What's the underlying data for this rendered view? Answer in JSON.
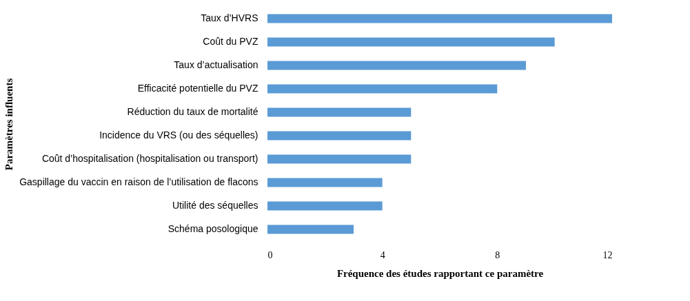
{
  "chart_data": {
    "type": "bar",
    "orientation": "horizontal",
    "categories": [
      "Taux d’HVRS",
      "Coût du PVZ",
      "Taux d’actualisation",
      "Efficacité potentielle du PVZ",
      "Réduction du taux de mortalité",
      "Incidence du VRS (ou des séquelles)",
      "Coût d’hospitalisation (hospitalisation ou transport)",
      "Gaspillage du vaccin en raison de l’utilisation de flacons",
      "Utilité des séquelles",
      "Schéma posologique"
    ],
    "values": [
      12,
      10,
      9,
      8,
      5,
      5,
      5,
      4,
      4,
      3
    ],
    "color": "#5b9bd5",
    "xlim": [
      0,
      12
    ],
    "xticks": [
      0,
      4,
      8,
      12
    ],
    "xlabel": "Fréquence des études rapportant ce paramètre",
    "ylabel": "Paramètres influents",
    "grid": false
  }
}
